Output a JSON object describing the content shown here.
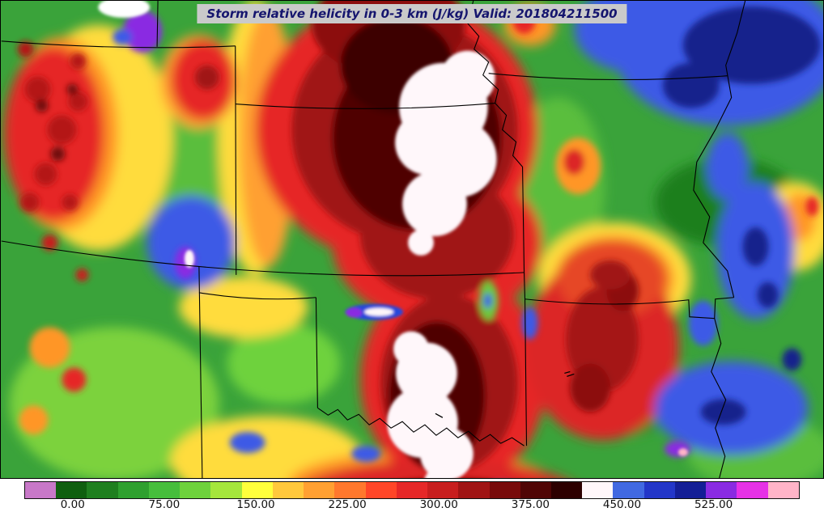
{
  "figure": {
    "title": "Storm relative helicity in 0-3 km (J/kg) Valid: 201804211500",
    "title_color": "#15156e",
    "title_bg": "#cacaca"
  },
  "colorbar": {
    "ticks": [
      "0.00",
      "75.00",
      "150.00",
      "225.00",
      "300.00",
      "375.00",
      "450.00",
      "525.00"
    ],
    "tick_positions_pct": [
      6.25,
      18.08,
      29.92,
      41.75,
      53.58,
      65.42,
      77.25,
      89.08
    ],
    "segments": [
      "#c878c8",
      "#0f5f0f",
      "#1f7f1f",
      "#2fa02f",
      "#46be3c",
      "#6ed23c",
      "#a5e63c",
      "#ffff3c",
      "#ffc83c",
      "#ffa032",
      "#ff782d",
      "#ff4628",
      "#e62828",
      "#c81e1e",
      "#a01414",
      "#780a0a",
      "#500505",
      "#2d0000",
      "#fff7fa",
      "#4169e1",
      "#2336c8",
      "#141e96",
      "#8a2be2",
      "#e632e6",
      "#ffb4c8"
    ]
  },
  "chart_data": {
    "type": "heatmap",
    "title": "Storm relative helicity in 0-3 km (J/kg) Valid: 201804211500",
    "variable": "Storm relative helicity 0-3 km",
    "units": "J/kg",
    "valid_time": "201804211500",
    "region": "Central United States (CO, NM, NE, KS, OK, TX, IA, MO, AR)",
    "colorbar_ticks": [
      0,
      75,
      150,
      225,
      300,
      375,
      450,
      525
    ],
    "colorbar_range": [
      -40,
      590
    ],
    "colorbar_colors": [
      "#c878c8",
      "#0f5f0f",
      "#1f7f1f",
      "#2fa02f",
      "#46be3c",
      "#6ed23c",
      "#a5e63c",
      "#ffff3c",
      "#ffc83c",
      "#ffa032",
      "#ff782d",
      "#ff4628",
      "#e62828",
      "#c81e1e",
      "#a01414",
      "#780a0a",
      "#500505",
      "#2d0000",
      "#fff7fa",
      "#4169e1",
      "#2336c8",
      "#141e96",
      "#8a2be2",
      "#e632e6",
      "#ffb4c8"
    ],
    "features": [
      {
        "area": "central Kansas",
        "approx_value": "400+ (off-scale maximum)",
        "appearance": "large white blob"
      },
      {
        "area": "central Oklahoma to Red River",
        "approx_value": "400+ (off-scale maximum)",
        "appearance": "white blob"
      },
      {
        "area": "western/central Kansas into south-central Nebraska",
        "approx_value": "300-400",
        "appearance": "dark red / maroon corridor"
      },
      {
        "area": "eastern Oklahoma",
        "approx_value": "225-325",
        "appearance": "broad red region with dark speckles"
      },
      {
        "area": "southeast Kansas / southwest Missouri",
        "approx_value": "200-300",
        "appearance": "red-orange patch"
      },
      {
        "area": "Iowa / northeast Missouri (top right)",
        "approx_value": "450-525",
        "appearance": "blue with navy core"
      },
      {
        "area": "eastern Missouri / Arkansas along Mississippi River",
        "approx_value": "450-525",
        "appearance": "blue patches"
      },
      {
        "area": "eastern Colorado near Kansas border",
        "approx_value": "450-525 with small 525+ core",
        "appearance": "blue with purple/white specks"
      },
      {
        "area": "Texas/Oklahoma panhandle junction",
        "approx_value": "450-525 narrow sliver",
        "appearance": "small blue/white/purple sliver"
      },
      {
        "area": "New Mexico / Colorado high terrain (left edge)",
        "approx_value": "100-300 noisy",
        "appearance": "speckled red/orange over yellow-green"
      },
      {
        "area": "far north-central edge (top left)",
        "approx_value": "400-525+",
        "appearance": "small white and purple blob"
      },
      {
        "area": "north Texas along bottom edge",
        "approx_value": "225-350",
        "appearance": "red/dark-red band"
      }
    ]
  }
}
